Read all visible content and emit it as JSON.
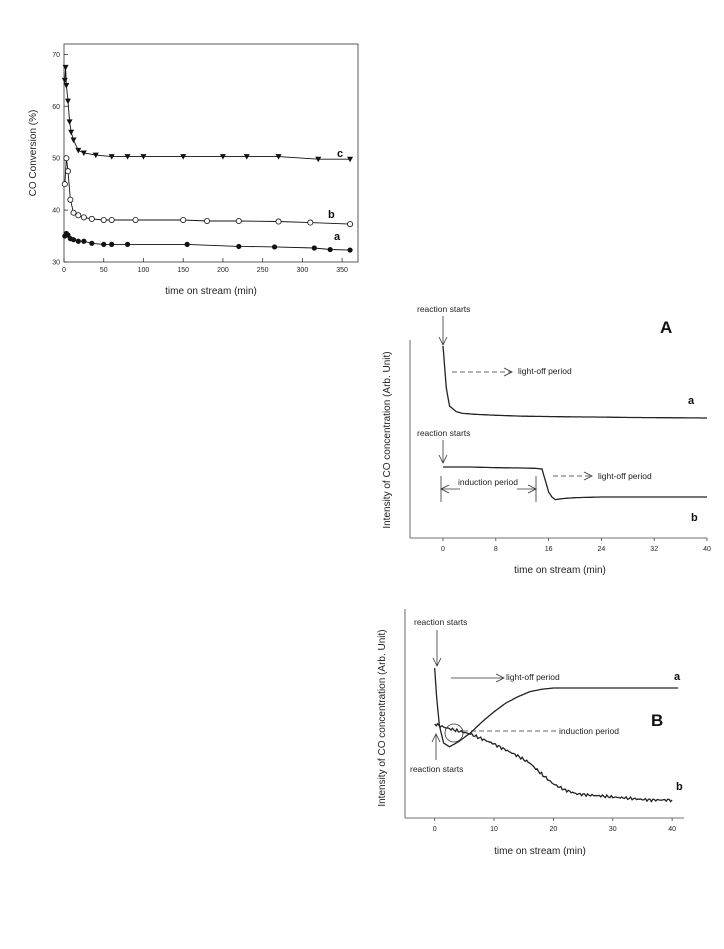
{
  "chart_data": [
    {
      "type": "line",
      "xlabel": "time on stream (min)",
      "ylabel": "CO Conversion (%)",
      "xlim": [
        0,
        370
      ],
      "ylim": [
        30,
        72
      ],
      "xticks": [
        0,
        50,
        100,
        150,
        200,
        250,
        300,
        350
      ],
      "yticks": [
        30,
        40,
        50,
        60,
        70
      ],
      "series": [
        {
          "name": "a",
          "marker": "filled-circle",
          "x": [
            1,
            3,
            5,
            8,
            12,
            18,
            25,
            35,
            50,
            60,
            80,
            155,
            220,
            265,
            315,
            335,
            360
          ],
          "y": [
            35,
            35.5,
            35.2,
            34.5,
            34.3,
            34,
            34,
            33.6,
            33.4,
            33.4,
            33.4,
            33.4,
            33,
            32.9,
            32.7,
            32.4,
            32.3
          ]
        },
        {
          "name": "b",
          "marker": "open-circle",
          "x": [
            1,
            3,
            5,
            8,
            12,
            18,
            25,
            35,
            50,
            60,
            90,
            150,
            180,
            220,
            270,
            310,
            360
          ],
          "y": [
            45,
            50,
            47.5,
            42,
            39.5,
            39,
            38.6,
            38.3,
            38.1,
            38.1,
            38.1,
            38.1,
            37.9,
            37.9,
            37.8,
            37.6,
            37.3
          ]
        },
        {
          "name": "c",
          "marker": "filled-triangle-down",
          "x": [
            1,
            2,
            3,
            5,
            7,
            9,
            12,
            18,
            25,
            40,
            60,
            80,
            100,
            150,
            200,
            230,
            270,
            320,
            360
          ],
          "y": [
            65,
            67.5,
            64,
            61,
            57,
            55,
            53.5,
            51.5,
            51,
            50.6,
            50.3,
            50.3,
            50.3,
            50.3,
            50.3,
            50.3,
            50.3,
            49.8,
            49.8
          ]
        }
      ]
    },
    {
      "type": "line",
      "panel": "A",
      "xlabel": "time on stream (min)",
      "ylabel": "Intensity of CO concentration (Arb. Unit)",
      "xlim": [
        -5,
        40
      ],
      "xticks": [
        0,
        8,
        16,
        24,
        32,
        40
      ],
      "series": [
        {
          "name": "a",
          "x": [
            0,
            0.2,
            0.5,
            1,
            2,
            3,
            5,
            8,
            12,
            16,
            20,
            24,
            28,
            32,
            36,
            40
          ],
          "y": [
            9.8,
            8.9,
            7.5,
            6.5,
            6.2,
            6.1,
            6.05,
            6.0,
            5.95,
            5.93,
            5.91,
            5.9,
            5.88,
            5.87,
            5.86,
            5.85
          ]
        },
        {
          "name": "b",
          "x": [
            0,
            2,
            4,
            8,
            12,
            14,
            15,
            15.5,
            16,
            16.5,
            17,
            18,
            20,
            24,
            28,
            32,
            36,
            40
          ],
          "y": [
            2.9,
            2.9,
            2.9,
            2.88,
            2.87,
            2.86,
            2.84,
            2.5,
            2.15,
            2.0,
            1.92,
            1.95,
            1.98,
            2.0,
            2.0,
            2.0,
            2.0,
            2.0
          ]
        }
      ],
      "annotations": [
        "reaction starts",
        "light-off period",
        "reaction starts",
        "induction period",
        "light-off period"
      ],
      "labels": [
        "a",
        "b"
      ]
    },
    {
      "type": "line",
      "panel": "B",
      "xlabel": "time on stream (min)",
      "ylabel": "Intensity of CO concentration (Arb. Unit)",
      "xlim": [
        -5,
        42
      ],
      "xticks": [
        0,
        10,
        20,
        30,
        40
      ],
      "series": [
        {
          "name": "a",
          "x": [
            0,
            0.3,
            0.8,
            1.5,
            2.5,
            4,
            6,
            8,
            10,
            12,
            14,
            16,
            18,
            20,
            22,
            24,
            28,
            32,
            36,
            41
          ],
          "y": [
            8.9,
            7.8,
            6.6,
            5.9,
            5.75,
            5.95,
            6.3,
            6.75,
            7.15,
            7.5,
            7.75,
            7.95,
            8.05,
            8.1,
            8.1,
            8.1,
            8.1,
            8.1,
            8.1,
            8.1
          ]
        },
        {
          "name": "b",
          "x": [
            0,
            2,
            4,
            6,
            8,
            10,
            12,
            14,
            16,
            18,
            20,
            22,
            24,
            26,
            28,
            30,
            32,
            34,
            36,
            38,
            40
          ],
          "y": [
            4.3,
            4.1,
            3.95,
            3.8,
            3.55,
            3.3,
            3.0,
            2.7,
            2.35,
            1.8,
            1.3,
            1.0,
            0.8,
            0.75,
            0.7,
            0.65,
            0.6,
            0.55,
            0.5,
            0.5,
            0.5
          ]
        }
      ],
      "annotations": [
        "reaction starts",
        "light-off period",
        "induction period",
        "reaction starts"
      ],
      "labels": [
        "a",
        "b"
      ]
    }
  ]
}
